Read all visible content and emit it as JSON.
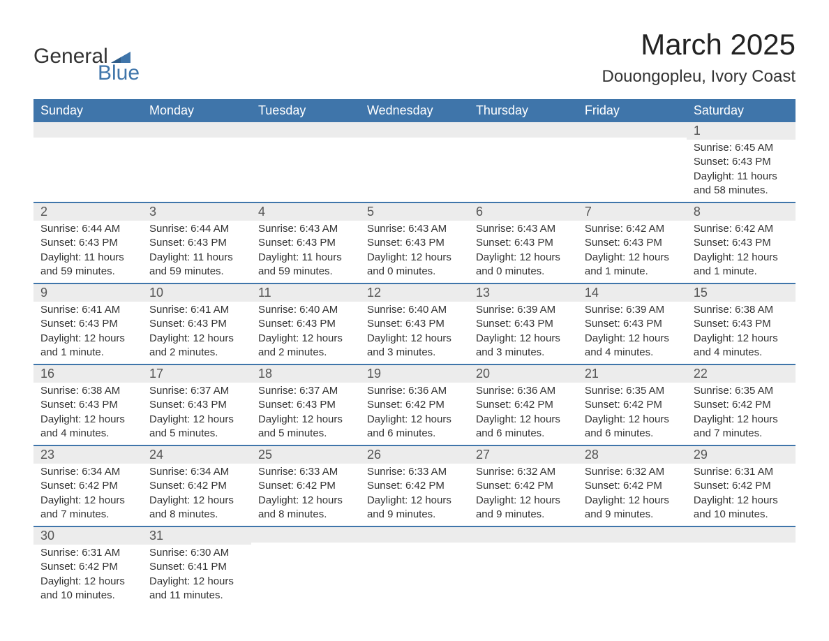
{
  "logo": {
    "line1": "General",
    "line2": "Blue",
    "text_color": "#333333",
    "accent_color": "#3f75aa"
  },
  "header": {
    "month_title": "March 2025",
    "location": "Douongopleu, Ivory Coast"
  },
  "styling": {
    "header_bg": "#3f75aa",
    "header_text": "#ffffff",
    "daynum_bg": "#ececec",
    "daynum_text": "#555555",
    "body_text": "#333333",
    "row_border": "#3f75aa",
    "page_bg": "#ffffff",
    "font_family": "Arial",
    "header_fontsize": 18,
    "daynum_fontsize": 18,
    "body_fontsize": 15,
    "title_fontsize": 42,
    "location_fontsize": 24
  },
  "columns": [
    "Sunday",
    "Monday",
    "Tuesday",
    "Wednesday",
    "Thursday",
    "Friday",
    "Saturday"
  ],
  "weeks": [
    [
      {
        "day": "",
        "sunrise": "",
        "sunset": "",
        "daylight": ""
      },
      {
        "day": "",
        "sunrise": "",
        "sunset": "",
        "daylight": ""
      },
      {
        "day": "",
        "sunrise": "",
        "sunset": "",
        "daylight": ""
      },
      {
        "day": "",
        "sunrise": "",
        "sunset": "",
        "daylight": ""
      },
      {
        "day": "",
        "sunrise": "",
        "sunset": "",
        "daylight": ""
      },
      {
        "day": "",
        "sunrise": "",
        "sunset": "",
        "daylight": ""
      },
      {
        "day": "1",
        "sunrise": "Sunrise: 6:45 AM",
        "sunset": "Sunset: 6:43 PM",
        "daylight": "Daylight: 11 hours and 58 minutes."
      }
    ],
    [
      {
        "day": "2",
        "sunrise": "Sunrise: 6:44 AM",
        "sunset": "Sunset: 6:43 PM",
        "daylight": "Daylight: 11 hours and 59 minutes."
      },
      {
        "day": "3",
        "sunrise": "Sunrise: 6:44 AM",
        "sunset": "Sunset: 6:43 PM",
        "daylight": "Daylight: 11 hours and 59 minutes."
      },
      {
        "day": "4",
        "sunrise": "Sunrise: 6:43 AM",
        "sunset": "Sunset: 6:43 PM",
        "daylight": "Daylight: 11 hours and 59 minutes."
      },
      {
        "day": "5",
        "sunrise": "Sunrise: 6:43 AM",
        "sunset": "Sunset: 6:43 PM",
        "daylight": "Daylight: 12 hours and 0 minutes."
      },
      {
        "day": "6",
        "sunrise": "Sunrise: 6:43 AM",
        "sunset": "Sunset: 6:43 PM",
        "daylight": "Daylight: 12 hours and 0 minutes."
      },
      {
        "day": "7",
        "sunrise": "Sunrise: 6:42 AM",
        "sunset": "Sunset: 6:43 PM",
        "daylight": "Daylight: 12 hours and 1 minute."
      },
      {
        "day": "8",
        "sunrise": "Sunrise: 6:42 AM",
        "sunset": "Sunset: 6:43 PM",
        "daylight": "Daylight: 12 hours and 1 minute."
      }
    ],
    [
      {
        "day": "9",
        "sunrise": "Sunrise: 6:41 AM",
        "sunset": "Sunset: 6:43 PM",
        "daylight": "Daylight: 12 hours and 1 minute."
      },
      {
        "day": "10",
        "sunrise": "Sunrise: 6:41 AM",
        "sunset": "Sunset: 6:43 PM",
        "daylight": "Daylight: 12 hours and 2 minutes."
      },
      {
        "day": "11",
        "sunrise": "Sunrise: 6:40 AM",
        "sunset": "Sunset: 6:43 PM",
        "daylight": "Daylight: 12 hours and 2 minutes."
      },
      {
        "day": "12",
        "sunrise": "Sunrise: 6:40 AM",
        "sunset": "Sunset: 6:43 PM",
        "daylight": "Daylight: 12 hours and 3 minutes."
      },
      {
        "day": "13",
        "sunrise": "Sunrise: 6:39 AM",
        "sunset": "Sunset: 6:43 PM",
        "daylight": "Daylight: 12 hours and 3 minutes."
      },
      {
        "day": "14",
        "sunrise": "Sunrise: 6:39 AM",
        "sunset": "Sunset: 6:43 PM",
        "daylight": "Daylight: 12 hours and 4 minutes."
      },
      {
        "day": "15",
        "sunrise": "Sunrise: 6:38 AM",
        "sunset": "Sunset: 6:43 PM",
        "daylight": "Daylight: 12 hours and 4 minutes."
      }
    ],
    [
      {
        "day": "16",
        "sunrise": "Sunrise: 6:38 AM",
        "sunset": "Sunset: 6:43 PM",
        "daylight": "Daylight: 12 hours and 4 minutes."
      },
      {
        "day": "17",
        "sunrise": "Sunrise: 6:37 AM",
        "sunset": "Sunset: 6:43 PM",
        "daylight": "Daylight: 12 hours and 5 minutes."
      },
      {
        "day": "18",
        "sunrise": "Sunrise: 6:37 AM",
        "sunset": "Sunset: 6:43 PM",
        "daylight": "Daylight: 12 hours and 5 minutes."
      },
      {
        "day": "19",
        "sunrise": "Sunrise: 6:36 AM",
        "sunset": "Sunset: 6:42 PM",
        "daylight": "Daylight: 12 hours and 6 minutes."
      },
      {
        "day": "20",
        "sunrise": "Sunrise: 6:36 AM",
        "sunset": "Sunset: 6:42 PM",
        "daylight": "Daylight: 12 hours and 6 minutes."
      },
      {
        "day": "21",
        "sunrise": "Sunrise: 6:35 AM",
        "sunset": "Sunset: 6:42 PM",
        "daylight": "Daylight: 12 hours and 6 minutes."
      },
      {
        "day": "22",
        "sunrise": "Sunrise: 6:35 AM",
        "sunset": "Sunset: 6:42 PM",
        "daylight": "Daylight: 12 hours and 7 minutes."
      }
    ],
    [
      {
        "day": "23",
        "sunrise": "Sunrise: 6:34 AM",
        "sunset": "Sunset: 6:42 PM",
        "daylight": "Daylight: 12 hours and 7 minutes."
      },
      {
        "day": "24",
        "sunrise": "Sunrise: 6:34 AM",
        "sunset": "Sunset: 6:42 PM",
        "daylight": "Daylight: 12 hours and 8 minutes."
      },
      {
        "day": "25",
        "sunrise": "Sunrise: 6:33 AM",
        "sunset": "Sunset: 6:42 PM",
        "daylight": "Daylight: 12 hours and 8 minutes."
      },
      {
        "day": "26",
        "sunrise": "Sunrise: 6:33 AM",
        "sunset": "Sunset: 6:42 PM",
        "daylight": "Daylight: 12 hours and 9 minutes."
      },
      {
        "day": "27",
        "sunrise": "Sunrise: 6:32 AM",
        "sunset": "Sunset: 6:42 PM",
        "daylight": "Daylight: 12 hours and 9 minutes."
      },
      {
        "day": "28",
        "sunrise": "Sunrise: 6:32 AM",
        "sunset": "Sunset: 6:42 PM",
        "daylight": "Daylight: 12 hours and 9 minutes."
      },
      {
        "day": "29",
        "sunrise": "Sunrise: 6:31 AM",
        "sunset": "Sunset: 6:42 PM",
        "daylight": "Daylight: 12 hours and 10 minutes."
      }
    ],
    [
      {
        "day": "30",
        "sunrise": "Sunrise: 6:31 AM",
        "sunset": "Sunset: 6:42 PM",
        "daylight": "Daylight: 12 hours and 10 minutes."
      },
      {
        "day": "31",
        "sunrise": "Sunrise: 6:30 AM",
        "sunset": "Sunset: 6:41 PM",
        "daylight": "Daylight: 12 hours and 11 minutes."
      },
      {
        "day": "",
        "sunrise": "",
        "sunset": "",
        "daylight": ""
      },
      {
        "day": "",
        "sunrise": "",
        "sunset": "",
        "daylight": ""
      },
      {
        "day": "",
        "sunrise": "",
        "sunset": "",
        "daylight": ""
      },
      {
        "day": "",
        "sunrise": "",
        "sunset": "",
        "daylight": ""
      },
      {
        "day": "",
        "sunrise": "",
        "sunset": "",
        "daylight": ""
      }
    ]
  ]
}
